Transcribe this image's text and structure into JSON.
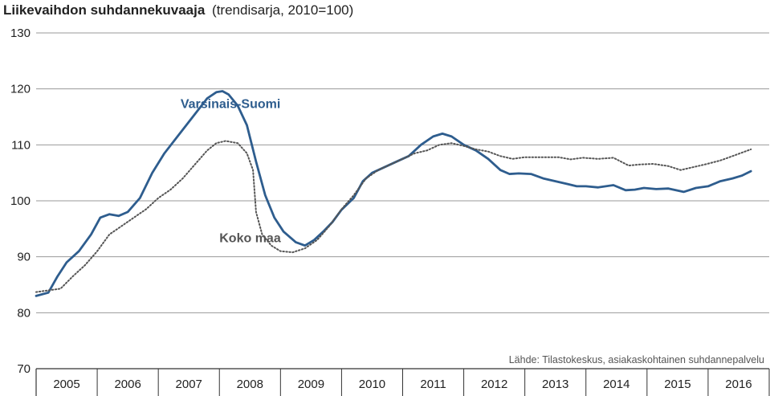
{
  "chart_data": {
    "type": "line",
    "title": "Liikevaihdon suhdannekuvaaja",
    "subtitle": "(trendisarja, 2010=100)",
    "source": "Lähde: Tilastokeskus, asiakaskohtainen suhdannepalvelu",
    "ylim": [
      70,
      130
    ],
    "yticks": [
      70,
      80,
      90,
      100,
      110,
      120,
      130
    ],
    "xlim": [
      2005.0,
      2017.0
    ],
    "xticks": [
      2005,
      2006,
      2007,
      2008,
      2009,
      2010,
      2011,
      2012,
      2013,
      2014,
      2015,
      2016,
      2017
    ],
    "year_labels": [
      "2005",
      "2006",
      "2007",
      "2008",
      "2009",
      "2010",
      "2011",
      "2012",
      "2013",
      "2014",
      "2015",
      "2016"
    ],
    "grid": "horizontal",
    "series": [
      {
        "name": "Varsinais-Suomi",
        "style": "solid",
        "color": "#2e5d8e",
        "points": [
          [
            2005.0,
            83.0
          ],
          [
            2005.2,
            83.6
          ],
          [
            2005.35,
            86.5
          ],
          [
            2005.5,
            89.0
          ],
          [
            2005.7,
            91.0
          ],
          [
            2005.9,
            94.0
          ],
          [
            2006.05,
            97.0
          ],
          [
            2006.2,
            97.6
          ],
          [
            2006.35,
            97.3
          ],
          [
            2006.5,
            98.0
          ],
          [
            2006.7,
            100.5
          ],
          [
            2006.9,
            105.0
          ],
          [
            2007.1,
            108.5
          ],
          [
            2007.35,
            112.0
          ],
          [
            2007.6,
            115.5
          ],
          [
            2007.8,
            118.3
          ],
          [
            2007.95,
            119.4
          ],
          [
            2008.05,
            119.6
          ],
          [
            2008.15,
            119.0
          ],
          [
            2008.3,
            117.0
          ],
          [
            2008.45,
            113.5
          ],
          [
            2008.6,
            107.0
          ],
          [
            2008.75,
            101.0
          ],
          [
            2008.9,
            97.0
          ],
          [
            2009.05,
            94.5
          ],
          [
            2009.25,
            92.6
          ],
          [
            2009.4,
            92.0
          ],
          [
            2009.55,
            93.0
          ],
          [
            2009.7,
            94.5
          ],
          [
            2009.85,
            96.2
          ],
          [
            2010.0,
            98.4
          ],
          [
            2010.2,
            100.5
          ],
          [
            2010.35,
            103.5
          ],
          [
            2010.5,
            105.0
          ],
          [
            2010.7,
            106.0
          ],
          [
            2010.9,
            107.0
          ],
          [
            2011.1,
            108.0
          ],
          [
            2011.3,
            110.0
          ],
          [
            2011.5,
            111.5
          ],
          [
            2011.65,
            112.0
          ],
          [
            2011.8,
            111.5
          ],
          [
            2012.0,
            110.0
          ],
          [
            2012.2,
            109.0
          ],
          [
            2012.4,
            107.5
          ],
          [
            2012.6,
            105.5
          ],
          [
            2012.75,
            104.8
          ],
          [
            2012.9,
            104.9
          ],
          [
            2013.1,
            104.8
          ],
          [
            2013.3,
            104.0
          ],
          [
            2013.5,
            103.5
          ],
          [
            2013.7,
            103.0
          ],
          [
            2013.85,
            102.6
          ],
          [
            2014.0,
            102.6
          ],
          [
            2014.2,
            102.4
          ],
          [
            2014.45,
            102.8
          ],
          [
            2014.65,
            101.9
          ],
          [
            2014.8,
            102.0
          ],
          [
            2014.95,
            102.3
          ],
          [
            2015.15,
            102.1
          ],
          [
            2015.35,
            102.2
          ],
          [
            2015.6,
            101.6
          ],
          [
            2015.8,
            102.3
          ],
          [
            2016.0,
            102.6
          ],
          [
            2016.2,
            103.5
          ],
          [
            2016.4,
            104.0
          ],
          [
            2016.55,
            104.5
          ],
          [
            2016.7,
            105.3
          ]
        ]
      },
      {
        "name": "Koko maa",
        "style": "dotted",
        "color": "#555555",
        "points": [
          [
            2005.0,
            83.7
          ],
          [
            2005.2,
            84.0
          ],
          [
            2005.4,
            84.3
          ],
          [
            2005.6,
            86.5
          ],
          [
            2005.8,
            88.5
          ],
          [
            2006.0,
            91.0
          ],
          [
            2006.2,
            94.0
          ],
          [
            2006.4,
            95.5
          ],
          [
            2006.6,
            97.0
          ],
          [
            2006.8,
            98.5
          ],
          [
            2007.0,
            100.5
          ],
          [
            2007.2,
            102.0
          ],
          [
            2007.4,
            104.0
          ],
          [
            2007.6,
            106.5
          ],
          [
            2007.8,
            109.0
          ],
          [
            2007.95,
            110.3
          ],
          [
            2008.1,
            110.7
          ],
          [
            2008.3,
            110.3
          ],
          [
            2008.45,
            108.5
          ],
          [
            2008.55,
            105.5
          ],
          [
            2008.6,
            98.0
          ],
          [
            2008.7,
            94.0
          ],
          [
            2008.85,
            92.0
          ],
          [
            2009.0,
            91.0
          ],
          [
            2009.2,
            90.8
          ],
          [
            2009.4,
            91.5
          ],
          [
            2009.6,
            93.0
          ],
          [
            2009.8,
            95.5
          ],
          [
            2010.0,
            98.5
          ],
          [
            2010.2,
            101.0
          ],
          [
            2010.4,
            104.0
          ],
          [
            2010.6,
            105.5
          ],
          [
            2010.8,
            106.5
          ],
          [
            2011.0,
            107.5
          ],
          [
            2011.2,
            108.5
          ],
          [
            2011.4,
            109.0
          ],
          [
            2011.6,
            110.0
          ],
          [
            2011.8,
            110.3
          ],
          [
            2012.0,
            109.8
          ],
          [
            2012.2,
            109.2
          ],
          [
            2012.4,
            108.8
          ],
          [
            2012.6,
            108.0
          ],
          [
            2012.8,
            107.5
          ],
          [
            2013.0,
            107.8
          ],
          [
            2013.3,
            107.8
          ],
          [
            2013.55,
            107.8
          ],
          [
            2013.75,
            107.4
          ],
          [
            2013.95,
            107.7
          ],
          [
            2014.2,
            107.5
          ],
          [
            2014.45,
            107.7
          ],
          [
            2014.7,
            106.3
          ],
          [
            2014.9,
            106.5
          ],
          [
            2015.1,
            106.6
          ],
          [
            2015.35,
            106.2
          ],
          [
            2015.55,
            105.5
          ],
          [
            2015.75,
            106.0
          ],
          [
            2015.95,
            106.5
          ],
          [
            2016.2,
            107.2
          ],
          [
            2016.45,
            108.2
          ],
          [
            2016.7,
            109.2
          ]
        ]
      }
    ],
    "annotations": [
      {
        "text": "Varsinais-Suomi",
        "x": 2009.0,
        "y": 116.6,
        "anchor": "end",
        "color": "#2e5d8e"
      },
      {
        "text": "Koko maa",
        "x": 2008.0,
        "y": 92.6,
        "anchor": "start",
        "color": "#555555"
      }
    ]
  }
}
